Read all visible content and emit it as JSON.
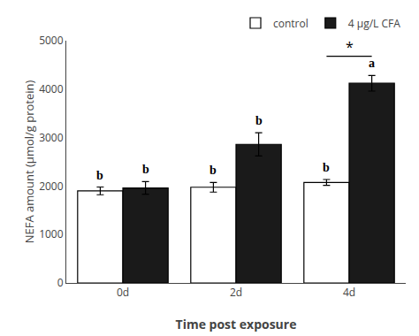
{
  "chart_data": {
    "type": "bar",
    "categories": [
      "0d",
      "2d",
      "4d"
    ],
    "series": [
      {
        "name": "control",
        "color": "#ffffff",
        "values": [
          1900,
          1975,
          2075
        ],
        "errors": [
          80,
          100,
          60
        ],
        "letters": [
          "b",
          "b",
          "b"
        ]
      },
      {
        "name": "4 μg/L CFA",
        "color": "#1a1a1a",
        "values": [
          1960,
          2860,
          4120
        ],
        "errors": [
          130,
          240,
          160
        ],
        "letters": [
          "b",
          "b",
          "a"
        ]
      }
    ],
    "xlabel": "Time post exposure",
    "ylabel": "NEFA amount (μmol/g protein)",
    "ylim": [
      0,
      5000
    ],
    "yticks": [
      0,
      1000,
      2000,
      3000,
      4000,
      5000
    ],
    "annotations": [
      {
        "text": "*",
        "category": "4d",
        "y": 4680
      }
    ],
    "grid": false,
    "legend": "upper right"
  }
}
